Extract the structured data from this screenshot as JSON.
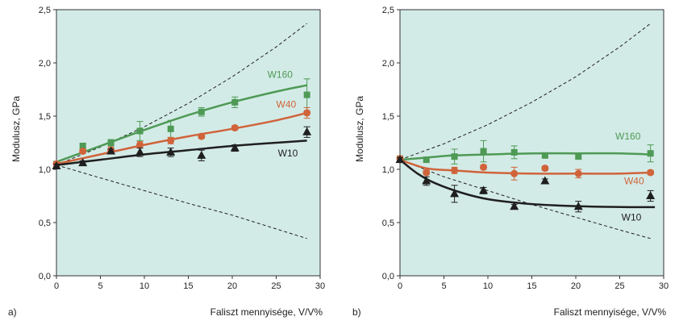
{
  "colors": {
    "plot_bg": "#d3ebe7",
    "W160": "#4e9a55",
    "W40": "#d0633a",
    "W10": "#1f1f1f",
    "bound": "#1f1f1f"
  },
  "chart_data": [
    {
      "type": "scatter",
      "panel_label": "a)",
      "xlabel": "Faliszt mennyisége, V/V%",
      "ylabel": "Modulusz, GPa",
      "xlim": [
        0,
        30
      ],
      "ylim": [
        0,
        2.5
      ],
      "xticks": [
        0,
        5,
        10,
        15,
        20,
        25,
        30
      ],
      "xtick_labels": [
        "0",
        "5",
        "10",
        "15",
        "20",
        "25",
        "30"
      ],
      "yticks": [
        0,
        0.5,
        1.0,
        1.5,
        2.0,
        2.5
      ],
      "ytick_labels": [
        "0,0",
        "0,5",
        "1,0",
        "1,5",
        "2,0",
        "2,5"
      ],
      "series": [
        {
          "name": "W160",
          "marker": "square",
          "x": [
            0,
            3,
            6.2,
            9.5,
            13,
            16.5,
            20.3,
            28.5
          ],
          "y": [
            1.05,
            1.22,
            1.25,
            1.36,
            1.38,
            1.54,
            1.63,
            1.7
          ],
          "err": [
            0.02,
            0.02,
            0.03,
            0.09,
            0.08,
            0.04,
            0.05,
            0.15
          ],
          "fit_x": [
            0,
            5,
            10,
            15,
            20,
            25,
            28.5
          ],
          "fit_y": [
            1.07,
            1.22,
            1.37,
            1.51,
            1.63,
            1.73,
            1.79
          ],
          "label_pos": [
            24,
            1.86
          ]
        },
        {
          "name": "W40",
          "marker": "circle",
          "x": [
            0,
            3,
            6.2,
            9.5,
            13,
            16.5,
            20.3,
            28.5
          ],
          "y": [
            1.05,
            1.17,
            1.18,
            1.23,
            1.27,
            1.31,
            1.39,
            1.53
          ],
          "err": [
            0.02,
            0.02,
            0.03,
            0.03,
            0.03,
            0.02,
            0.02,
            0.05
          ],
          "fit_x": [
            0,
            5,
            10,
            15,
            20,
            25,
            28.5
          ],
          "fit_y": [
            1.05,
            1.14,
            1.23,
            1.31,
            1.38,
            1.46,
            1.53
          ],
          "label_pos": [
            25,
            1.58
          ]
        },
        {
          "name": "W10",
          "marker": "triangle",
          "x": [
            0,
            3,
            6.2,
            9.5,
            13,
            16.5,
            20.3,
            28.5
          ],
          "y": [
            1.03,
            1.06,
            1.17,
            1.16,
            1.16,
            1.13,
            1.2,
            1.35
          ],
          "err": [
            0.02,
            0.02,
            0.02,
            0.04,
            0.04,
            0.05,
            0.03,
            0.05
          ],
          "fit_x": [
            0,
            5,
            10,
            15,
            20,
            25,
            28.5
          ],
          "fit_y": [
            1.04,
            1.09,
            1.14,
            1.18,
            1.22,
            1.25,
            1.27
          ],
          "label_pos": [
            25.2,
            1.12
          ]
        }
      ],
      "bounds": [
        {
          "name": "upper",
          "x": [
            0,
            5,
            10,
            15,
            20,
            25,
            28.5
          ],
          "y": [
            1.04,
            1.21,
            1.4,
            1.62,
            1.87,
            2.15,
            2.37
          ]
        },
        {
          "name": "lower",
          "x": [
            0,
            5,
            10,
            15,
            20,
            25,
            28.5
          ],
          "y": [
            1.04,
            0.92,
            0.8,
            0.68,
            0.57,
            0.44,
            0.35
          ]
        }
      ]
    },
    {
      "type": "scatter",
      "panel_label": "b)",
      "xlabel": "Faliszt mennyisége, V/V%",
      "ylabel": "Modulusz, GPa",
      "xlim": [
        0,
        30
      ],
      "ylim": [
        0,
        2.5
      ],
      "xticks": [
        0,
        5,
        10,
        15,
        20,
        25,
        30
      ],
      "xtick_labels": [
        "0",
        "5",
        "10",
        "15",
        "20",
        "25",
        "30"
      ],
      "yticks": [
        0,
        0.5,
        1.0,
        1.5,
        2.0,
        2.5
      ],
      "ytick_labels": [
        "0,0",
        "0,5",
        "1,0",
        "1,5",
        "2,0",
        "2,5"
      ],
      "series": [
        {
          "name": "W160",
          "marker": "square",
          "x": [
            0,
            3,
            6.2,
            9.5,
            13,
            16.5,
            20.3,
            28.5
          ],
          "y": [
            1.1,
            1.09,
            1.12,
            1.17,
            1.16,
            1.13,
            1.12,
            1.15
          ],
          "err": [
            0.02,
            0.02,
            0.07,
            0.1,
            0.06,
            0.02,
            0.02,
            0.08
          ],
          "fit_x": [
            0,
            3,
            6,
            10,
            15,
            20,
            25,
            28.5
          ],
          "fit_y": [
            1.09,
            1.11,
            1.13,
            1.14,
            1.15,
            1.15,
            1.15,
            1.14
          ],
          "label_pos": [
            24.5,
            1.28
          ]
        },
        {
          "name": "W40",
          "marker": "circle",
          "x": [
            0,
            3,
            6.2,
            9.5,
            13,
            16.5,
            20.3,
            28.5
          ],
          "y": [
            1.1,
            0.97,
            0.99,
            1.02,
            0.96,
            1.01,
            0.96,
            0.97
          ],
          "err": [
            0.02,
            0.02,
            0.03,
            0.02,
            0.06,
            0.02,
            0.04,
            0.02
          ],
          "fit_x": [
            0,
            3,
            6,
            10,
            15,
            20,
            25,
            28.5
          ],
          "fit_y": [
            1.09,
            1.01,
            0.99,
            0.97,
            0.96,
            0.96,
            0.96,
            0.97
          ],
          "label_pos": [
            25.5,
            0.86
          ]
        },
        {
          "name": "W10",
          "marker": "triangle",
          "x": [
            0,
            3,
            6.2,
            9.5,
            13,
            16.5,
            20.3,
            28.5
          ],
          "y": [
            1.09,
            0.89,
            0.77,
            0.8,
            0.65,
            0.89,
            0.65,
            0.75
          ],
          "err": [
            0.02,
            0.04,
            0.08,
            0.03,
            0.02,
            0.02,
            0.05,
            0.05
          ],
          "fit_x": [
            0,
            2,
            4,
            7,
            10,
            14,
            18,
            22,
            26,
            29
          ],
          "fit_y": [
            1.09,
            0.96,
            0.87,
            0.78,
            0.72,
            0.68,
            0.66,
            0.65,
            0.645,
            0.645
          ],
          "label_pos": [
            25.2,
            0.52
          ]
        }
      ],
      "bounds": [
        {
          "name": "upper",
          "x": [
            0,
            5,
            10,
            15,
            20,
            25,
            28.5
          ],
          "y": [
            1.09,
            1.24,
            1.42,
            1.63,
            1.87,
            2.15,
            2.37
          ]
        },
        {
          "name": "lower",
          "x": [
            0,
            5,
            10,
            15,
            20,
            25,
            28.5
          ],
          "y": [
            1.09,
            0.93,
            0.8,
            0.67,
            0.55,
            0.43,
            0.35
          ]
        }
      ]
    }
  ]
}
